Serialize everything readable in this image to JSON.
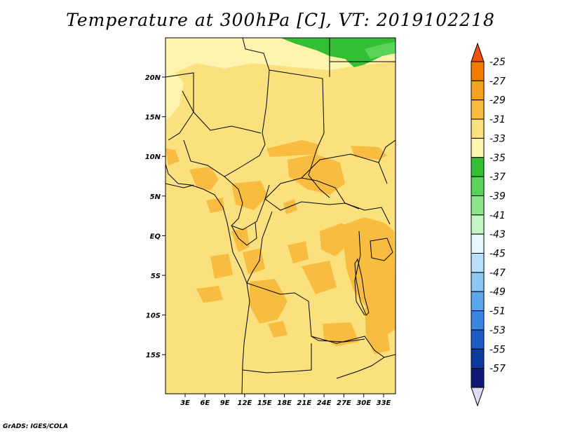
{
  "title": "Temperature at 300hPa [C], VT: 2019102218",
  "credit": "GrADS: IGES/COLA",
  "lat_ticks": [
    "20N",
    "15N",
    "10N",
    "5N",
    "EQ",
    "5S",
    "10S",
    "15S"
  ],
  "lon_ticks": [
    "3E",
    "6E",
    "9E",
    "12E",
    "15E",
    "18E",
    "21E",
    "24E",
    "27E",
    "30E",
    "33E"
  ],
  "colorbar": {
    "labels": [
      "-25",
      "-27",
      "-29",
      "-31",
      "-33",
      "-35",
      "-37",
      "-39",
      "-41",
      "-43",
      "-45",
      "-47",
      "-49",
      "-51",
      "-53",
      "-55",
      "-57"
    ],
    "colors": [
      "#f05010",
      "#f57a00",
      "#f5a020",
      "#f8bd40",
      "#fbe07e",
      "#fff4ad",
      "#33bf33",
      "#5ad35a",
      "#8de58d",
      "#c4f5c4",
      "#e4f8ff",
      "#b8e0fb",
      "#8bc7f5",
      "#5ca6ee",
      "#3a86e3",
      "#1c5bc8",
      "#0d3aa0",
      "#101a78",
      "#dcdcf5"
    ]
  },
  "map": {
    "domain_lon": [
      0,
      35
    ],
    "domain_lat": [
      -20,
      25
    ],
    "colors": {
      "base": "#fbe07e",
      "cool": "#fff4ad",
      "warm": "#f8bd40",
      "green": "#33bf33",
      "green_light": "#5ad35a",
      "lines": "#000000"
    }
  }
}
